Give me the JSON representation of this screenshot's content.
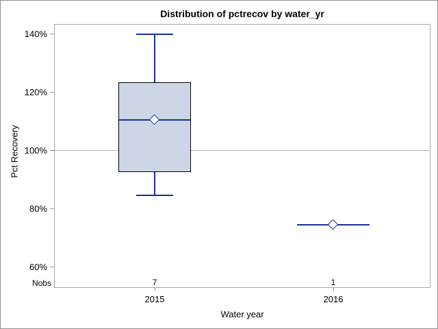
{
  "window": {
    "background": "#ffffff",
    "border_color": "#909090"
  },
  "chart_data": {
    "type": "box",
    "title": "Distribution of pctrecov by water_yr",
    "xlabel": "Water year",
    "ylabel": "Pct Recovery",
    "categories": [
      "2015",
      "2016"
    ],
    "stat_table": {
      "label": "Nobs",
      "values": [
        "7",
        "1"
      ]
    },
    "yticks": [
      {
        "label": "140%",
        "value": 140
      },
      {
        "label": "120%",
        "value": 120
      },
      {
        "label": "100%",
        "value": 100
      },
      {
        "label": "80%",
        "value": 80
      },
      {
        "label": "60%",
        "value": 60
      }
    ],
    "ylim": [
      53,
      143
    ],
    "refline": 100,
    "grid": "off",
    "legend": "none",
    "series": [
      {
        "category": "2015",
        "nobs": 7,
        "min": 84.5,
        "q1": 92.5,
        "median": 110.5,
        "mean": 110.5,
        "q3": 123.5,
        "max": 140
      },
      {
        "category": "2016",
        "nobs": 1,
        "min": 74.5,
        "q1": 74.5,
        "median": 74.5,
        "mean": 74.5,
        "q3": 74.5,
        "max": 74.5
      }
    ],
    "colors": {
      "box_fill": "#cdd6e6",
      "box_border": "#000000",
      "line": "#192d9e",
      "refline": "#b2b6ba",
      "frame": "#a3a8ad",
      "tick": "#8f9397",
      "text": "#000000"
    }
  }
}
